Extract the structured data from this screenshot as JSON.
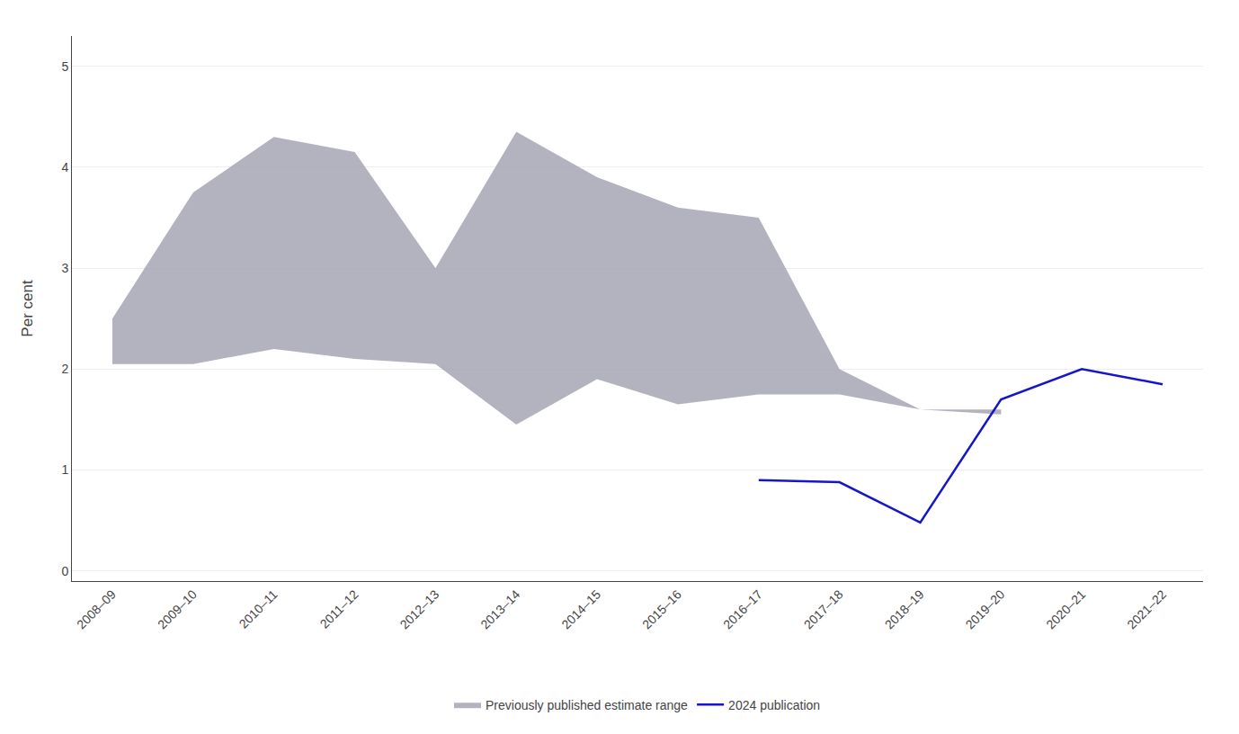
{
  "chart_data": {
    "type": "line",
    "categories": [
      "2008–09",
      "2009–10",
      "2010–11",
      "2011–12",
      "2012–13",
      "2013–14",
      "2014–15",
      "2015–16",
      "2016–17",
      "2017–18",
      "2018–19",
      "2019–20",
      "2020–21",
      "2021–22"
    ],
    "ylabel": "Per cent",
    "ylim": [
      -0.1,
      5.3
    ],
    "yticks": [
      0,
      1,
      2,
      3,
      4,
      5
    ],
    "grid": true,
    "legend": "bottom",
    "series": [
      {
        "name": "Previously published estimate range",
        "type": "band",
        "color": "#a0a0b0",
        "upper": [
          2.5,
          3.75,
          4.3,
          4.15,
          3.0,
          4.35,
          3.9,
          3.6,
          3.5,
          2.0,
          1.6,
          1.6,
          null,
          null
        ],
        "lower": [
          2.05,
          2.05,
          2.2,
          2.1,
          2.05,
          1.45,
          1.9,
          1.65,
          1.75,
          1.75,
          1.6,
          1.55,
          null,
          null
        ]
      },
      {
        "name": "2024 publication",
        "type": "line",
        "color": "#1515cc",
        "values": [
          null,
          null,
          null,
          null,
          null,
          null,
          null,
          null,
          0.9,
          0.88,
          0.48,
          1.7,
          2.0,
          1.85
        ]
      }
    ]
  }
}
